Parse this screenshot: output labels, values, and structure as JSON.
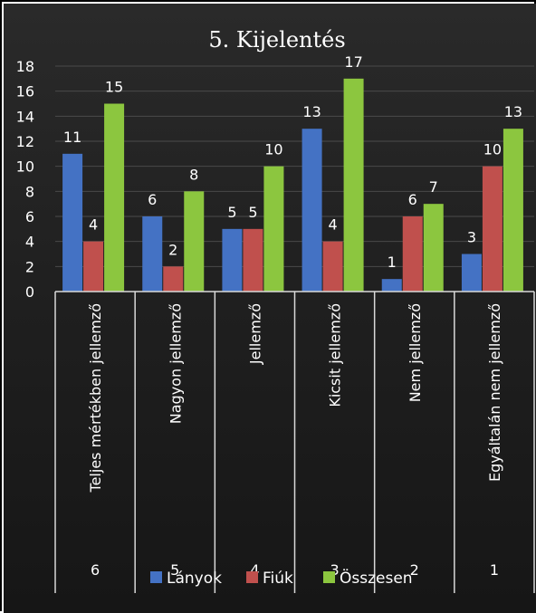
{
  "chart_data": {
    "type": "bar",
    "title": "5. Kijelentés",
    "categories": [
      "Teljes mértékben jellemző",
      "Nagyon jellemző",
      "Jellemző",
      "Kicsit jellemző",
      "Nem jellemző",
      "Egyáltalán nem jellemző"
    ],
    "category_numbers": [
      "6",
      "5",
      "4",
      "3",
      "2",
      "1"
    ],
    "series": [
      {
        "name": "Lányok",
        "values": [
          11,
          6,
          5,
          13,
          1,
          3
        ],
        "color": "#4472c4"
      },
      {
        "name": "Fiúk",
        "values": [
          4,
          2,
          5,
          4,
          6,
          10
        ],
        "color": "#c0504d"
      },
      {
        "name": "Összesen",
        "values": [
          15,
          8,
          10,
          17,
          7,
          13
        ],
        "color": "#8cc63f"
      }
    ],
    "ylim": [
      0,
      18
    ],
    "yticks": [
      0,
      2,
      4,
      6,
      8,
      10,
      12,
      14,
      16,
      18
    ],
    "grid": true,
    "legend": "bottom",
    "colors": {
      "background": "#1c1c1c",
      "grid": "#4a4a4a",
      "axis": "#d9d9d9",
      "text": "#ffffff"
    }
  }
}
